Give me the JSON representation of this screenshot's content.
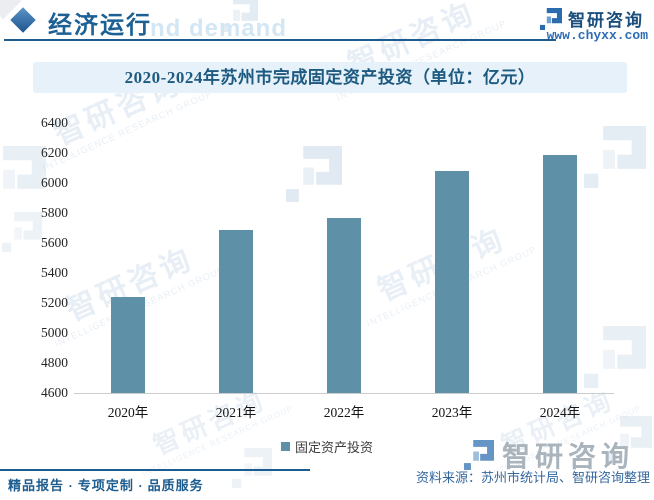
{
  "header": {
    "section_title": "经济运行",
    "brand_name": "智研咨询",
    "brand_url": "www.chyxx.com",
    "watermark_fragment": "nd demand"
  },
  "chart_data": {
    "type": "bar",
    "title": "2020-2024年苏州市完成固定资产投资（单位：亿元）",
    "unit": "亿元",
    "categories": [
      "2020年",
      "2021年",
      "2022年",
      "2023年",
      "2024年"
    ],
    "values": [
      5240,
      5690,
      5770,
      6080,
      6185
    ],
    "series_name": "固定资产投资",
    "ylim": [
      4600,
      6400
    ],
    "ytick_step": 200,
    "grid": false,
    "legend_position": "bottom",
    "bar_color": "#5e91a8"
  },
  "legend": {
    "label": "固定资产投资",
    "marker_color": "#5e91a8"
  },
  "footer": {
    "tagline": "精品报告 · 专项定制 · 品质服务",
    "source": "资料来源：苏州市统计局、智研咨询整理",
    "brand_name": "智研咨询"
  },
  "watermark": {
    "brand": "智研咨询",
    "brand_en": "INTELLIGENCE RESEARCH GROUP"
  },
  "colors": {
    "accent_blue": "#1d5c90",
    "header_title": "#1c6094",
    "title_band_bg": "#e6f1f9",
    "title_text": "#1e5a80",
    "bar": "#5e91a8",
    "axis_line": "#cccccc",
    "source_text": "#34679c",
    "footer_logo_gray": "#a9b4bd"
  }
}
